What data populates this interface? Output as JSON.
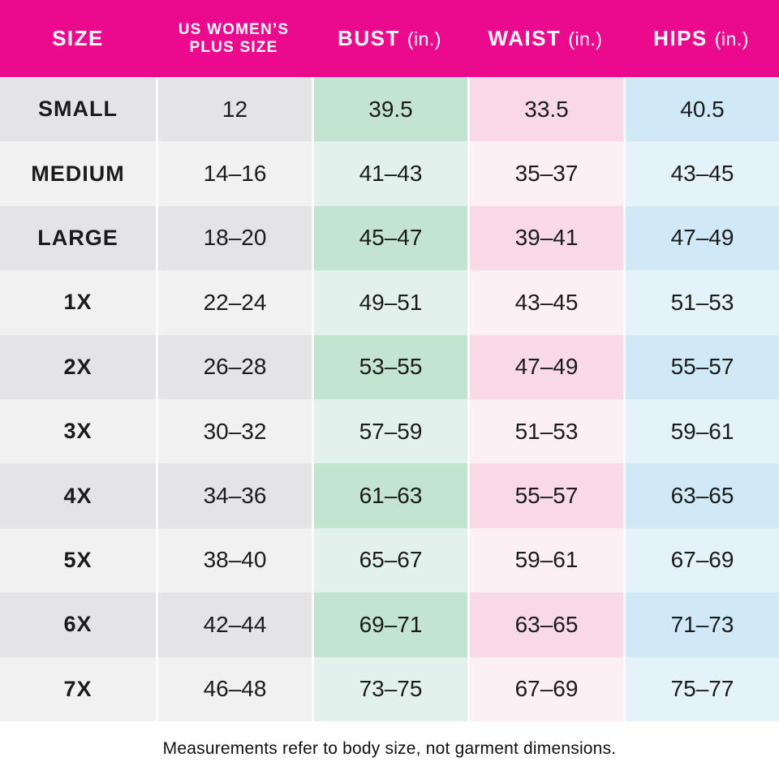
{
  "table": {
    "header": {
      "size": "SIZE",
      "plus_line1": "US WOMEN’S",
      "plus_line2": "PLUS SIZE",
      "bust": "BUST",
      "waist": "WAIST",
      "hips": "HIPS",
      "unit": "(in.)"
    },
    "rows": [
      {
        "size": "SMALL",
        "plus": "12",
        "bust": "39.5",
        "waist": "33.5",
        "hips": "40.5"
      },
      {
        "size": "MEDIUM",
        "plus": "14–16",
        "bust": "41–43",
        "waist": "35–37",
        "hips": "43–45"
      },
      {
        "size": "LARGE",
        "plus": "18–20",
        "bust": "45–47",
        "waist": "39–41",
        "hips": "47–49"
      },
      {
        "size": "1X",
        "plus": "22–24",
        "bust": "49–51",
        "waist": "43–45",
        "hips": "51–53"
      },
      {
        "size": "2X",
        "plus": "26–28",
        "bust": "53–55",
        "waist": "47–49",
        "hips": "55–57"
      },
      {
        "size": "3X",
        "plus": "30–32",
        "bust": "57–59",
        "waist": "51–53",
        "hips": "59–61"
      },
      {
        "size": "4X",
        "plus": "34–36",
        "bust": "61–63",
        "waist": "55–57",
        "hips": "63–65"
      },
      {
        "size": "5X",
        "plus": "38–40",
        "bust": "65–67",
        "waist": "59–61",
        "hips": "67–69"
      },
      {
        "size": "6X",
        "plus": "42–44",
        "bust": "69–71",
        "waist": "63–65",
        "hips": "71–73"
      },
      {
        "size": "7X",
        "plus": "46–48",
        "bust": "73–75",
        "waist": "67–69",
        "hips": "75–77"
      }
    ],
    "footnote": "Measurements refer to body size, not garment dimensions.",
    "colors": {
      "header_bg": "#EB0A8D",
      "header_text": "#FFFFFF",
      "gray_dark": "#E4E4E6",
      "gray_light": "#F1F1F2",
      "green_dark": "#C3E4CF",
      "green_light": "#E2F1EB",
      "pink_dark": "#FAD9E7",
      "pink_light": "#FDF0F5",
      "blue_dark": "#CFE9F7",
      "blue_light": "#E4F2FA",
      "body_text": "#1B1B1B"
    }
  },
  "chart_data": {
    "type": "table",
    "title": "US Women's Plus Size Chart",
    "columns": [
      "SIZE",
      "US WOMEN’S PLUS SIZE",
      "BUST (in.)",
      "WAIST (in.)",
      "HIPS (in.)"
    ],
    "rows": [
      [
        "SMALL",
        "12",
        "39.5",
        "33.5",
        "40.5"
      ],
      [
        "MEDIUM",
        "14–16",
        "41–43",
        "35–37",
        "43–45"
      ],
      [
        "LARGE",
        "18–20",
        "45–47",
        "39–41",
        "47–49"
      ],
      [
        "1X",
        "22–24",
        "49–51",
        "43–45",
        "51–53"
      ],
      [
        "2X",
        "26–28",
        "53–55",
        "47–49",
        "55–57"
      ],
      [
        "3X",
        "30–32",
        "57–59",
        "51–53",
        "59–61"
      ],
      [
        "4X",
        "34–36",
        "61–63",
        "55–57",
        "63–65"
      ],
      [
        "5X",
        "38–40",
        "65–67",
        "59–61",
        "67–69"
      ],
      [
        "6X",
        "42–44",
        "69–71",
        "63–65",
        "71–73"
      ],
      [
        "7X",
        "46–48",
        "73–75",
        "67–69",
        "75–77"
      ]
    ],
    "footnote": "Measurements refer to body size, not garment dimensions.",
    "layout": {
      "header_bg": "#EB0A8D",
      "alternating_rows": true,
      "column_tints": [
        "gray",
        "gray",
        "green",
        "pink",
        "blue"
      ]
    }
  }
}
